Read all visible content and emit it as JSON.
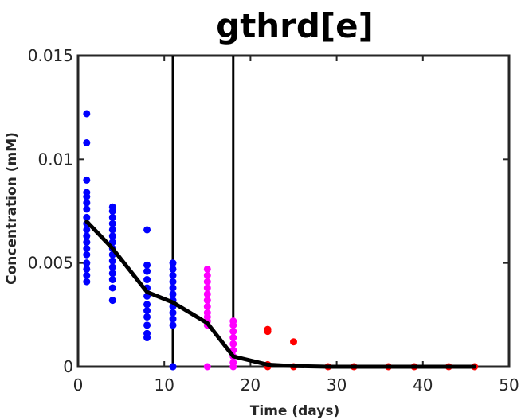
{
  "chart_data": {
    "type": "scatter",
    "title": "gthrd[e]",
    "xlabel": "Time (days)",
    "ylabel": "Concentration (mM)",
    "xlim": [
      0,
      50
    ],
    "ylim": [
      0,
      0.015
    ],
    "xticks": [
      0,
      10,
      20,
      30,
      40,
      50
    ],
    "xtick_labels": [
      "0",
      "10",
      "20",
      "30",
      "40",
      "50"
    ],
    "yticks": [
      0,
      0.005,
      0.01,
      0.015
    ],
    "ytick_labels": [
      "0",
      "0.005",
      "0.01",
      "0.015"
    ],
    "grid": false,
    "colors": {
      "phase1": "#0000ff",
      "phase2": "#ff00ff",
      "phase3": "#ff0000",
      "line": "#000000"
    },
    "vertical_lines_x": [
      11,
      18
    ],
    "series": [
      {
        "kind": "scatter",
        "color": "#0000ff",
        "points": [
          [
            1,
            0.0122
          ],
          [
            1,
            0.0108
          ],
          [
            1,
            0.009
          ],
          [
            1,
            0.0084
          ],
          [
            1,
            0.0082
          ],
          [
            1,
            0.0079
          ],
          [
            1,
            0.0076
          ],
          [
            1,
            0.0072
          ],
          [
            1,
            0.0069
          ],
          [
            1,
            0.0066
          ],
          [
            1,
            0.0063
          ],
          [
            1,
            0.006
          ],
          [
            1,
            0.0057
          ],
          [
            1,
            0.0054
          ],
          [
            1,
            0.005
          ],
          [
            1,
            0.0047
          ],
          [
            1,
            0.0044
          ],
          [
            1,
            0.0041
          ],
          [
            4,
            0.0077
          ],
          [
            4,
            0.0075
          ],
          [
            4,
            0.0072
          ],
          [
            4,
            0.0069
          ],
          [
            4,
            0.0066
          ],
          [
            4,
            0.0063
          ],
          [
            4,
            0.006
          ],
          [
            4,
            0.0057
          ],
          [
            4,
            0.0054
          ],
          [
            4,
            0.0051
          ],
          [
            4,
            0.0048
          ],
          [
            4,
            0.0045
          ],
          [
            4,
            0.0042
          ],
          [
            4,
            0.0038
          ],
          [
            4,
            0.0032
          ],
          [
            8,
            0.0066
          ],
          [
            8,
            0.0049
          ],
          [
            8,
            0.0046
          ],
          [
            8,
            0.0042
          ],
          [
            8,
            0.0038
          ],
          [
            8,
            0.0034
          ],
          [
            8,
            0.003
          ],
          [
            8,
            0.0027
          ],
          [
            8,
            0.0024
          ],
          [
            8,
            0.002
          ],
          [
            8,
            0.0016
          ],
          [
            8,
            0.0014
          ],
          [
            11,
            0.005
          ],
          [
            11,
            0.0047
          ],
          [
            11,
            0.0044
          ],
          [
            11,
            0.0041
          ],
          [
            11,
            0.0038
          ],
          [
            11,
            0.0035
          ],
          [
            11,
            0.0032
          ],
          [
            11,
            0.0029
          ],
          [
            11,
            0.0026
          ],
          [
            11,
            0.0023
          ],
          [
            11,
            0.002
          ],
          [
            11,
            0.0
          ],
          [
            11,
            0.0
          ]
        ]
      },
      {
        "kind": "scatter",
        "color": "#ff00ff",
        "points": [
          [
            15,
            0.0047
          ],
          [
            15,
            0.0044
          ],
          [
            15,
            0.0041
          ],
          [
            15,
            0.0038
          ],
          [
            15,
            0.0035
          ],
          [
            15,
            0.0032
          ],
          [
            15,
            0.0029
          ],
          [
            15,
            0.0026
          ],
          [
            15,
            0.0024
          ],
          [
            15,
            0.0022
          ],
          [
            15,
            0.002
          ],
          [
            15,
            0.0
          ],
          [
            18,
            0.0022
          ],
          [
            18,
            0.002
          ],
          [
            18,
            0.0017
          ],
          [
            18,
            0.0014
          ],
          [
            18,
            0.0011
          ],
          [
            18,
            0.0008
          ],
          [
            18,
            0.0005
          ],
          [
            18,
            0.0002
          ],
          [
            18,
            0.0
          ]
        ]
      },
      {
        "kind": "scatter",
        "color": "#ff0000",
        "points": [
          [
            22,
            0.0018
          ],
          [
            22,
            0.0017
          ],
          [
            22,
            0.0001
          ],
          [
            22,
            0.0
          ],
          [
            25,
            0.0012
          ],
          [
            25,
            0.0
          ],
          [
            29,
            0.0
          ],
          [
            32,
            0.0
          ],
          [
            36,
            0.0
          ],
          [
            39,
            0.0
          ],
          [
            43,
            0.0
          ],
          [
            46,
            0.0
          ]
        ]
      },
      {
        "kind": "line",
        "color": "#000000",
        "points": [
          [
            1,
            0.007
          ],
          [
            4,
            0.0057
          ],
          [
            8,
            0.0036
          ],
          [
            11,
            0.0031
          ],
          [
            15,
            0.0021
          ],
          [
            18,
            0.0005
          ],
          [
            22,
            0.0001
          ],
          [
            25,
            3e-05
          ],
          [
            29,
            0.0
          ],
          [
            32,
            0.0
          ],
          [
            36,
            0.0
          ],
          [
            39,
            0.0
          ],
          [
            43,
            0.0
          ],
          [
            46,
            0.0
          ]
        ]
      }
    ]
  }
}
